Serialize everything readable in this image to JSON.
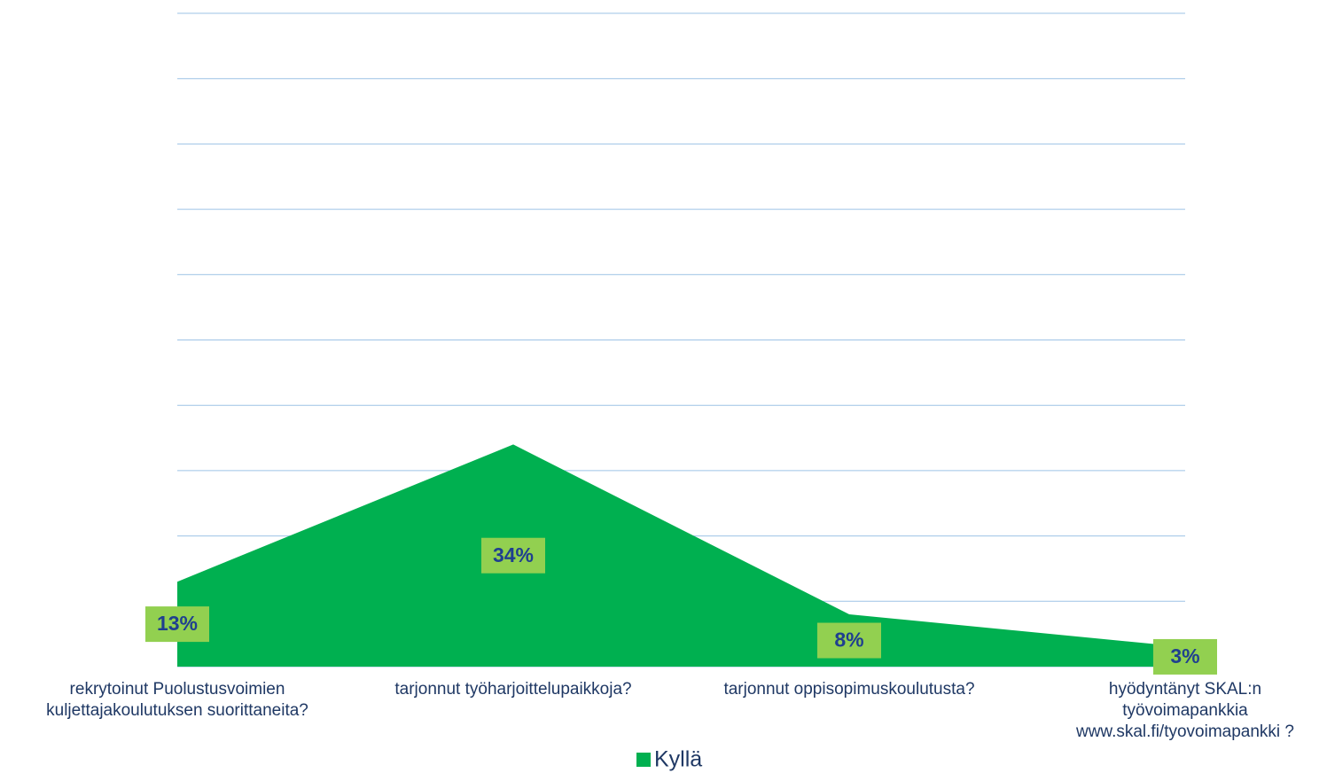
{
  "chart_data": {
    "type": "area",
    "categories": [
      "rekrytoinut Puolustusvoimien kuljettajakoulutuksen suorittaneita?",
      "tarjonnut työharjoittelupaikkoja?",
      "tarjonnut oppisopimuskoulutusta?",
      "hyödyntänyt SKAL:n työvoimapankkia www.skal.fi/tyovoimapankki ?"
    ],
    "series": [
      {
        "name": "Kyllä",
        "color": "#00b050",
        "values": [
          13,
          34,
          8,
          3
        ],
        "value_labels": [
          "13%",
          "34%",
          "8%",
          "3%"
        ]
      }
    ],
    "ylim": [
      0,
      100
    ],
    "yticks": [
      0,
      10,
      20,
      30,
      40,
      50,
      60,
      70,
      80,
      90,
      100
    ],
    "grid": true,
    "legend": "bottom"
  }
}
